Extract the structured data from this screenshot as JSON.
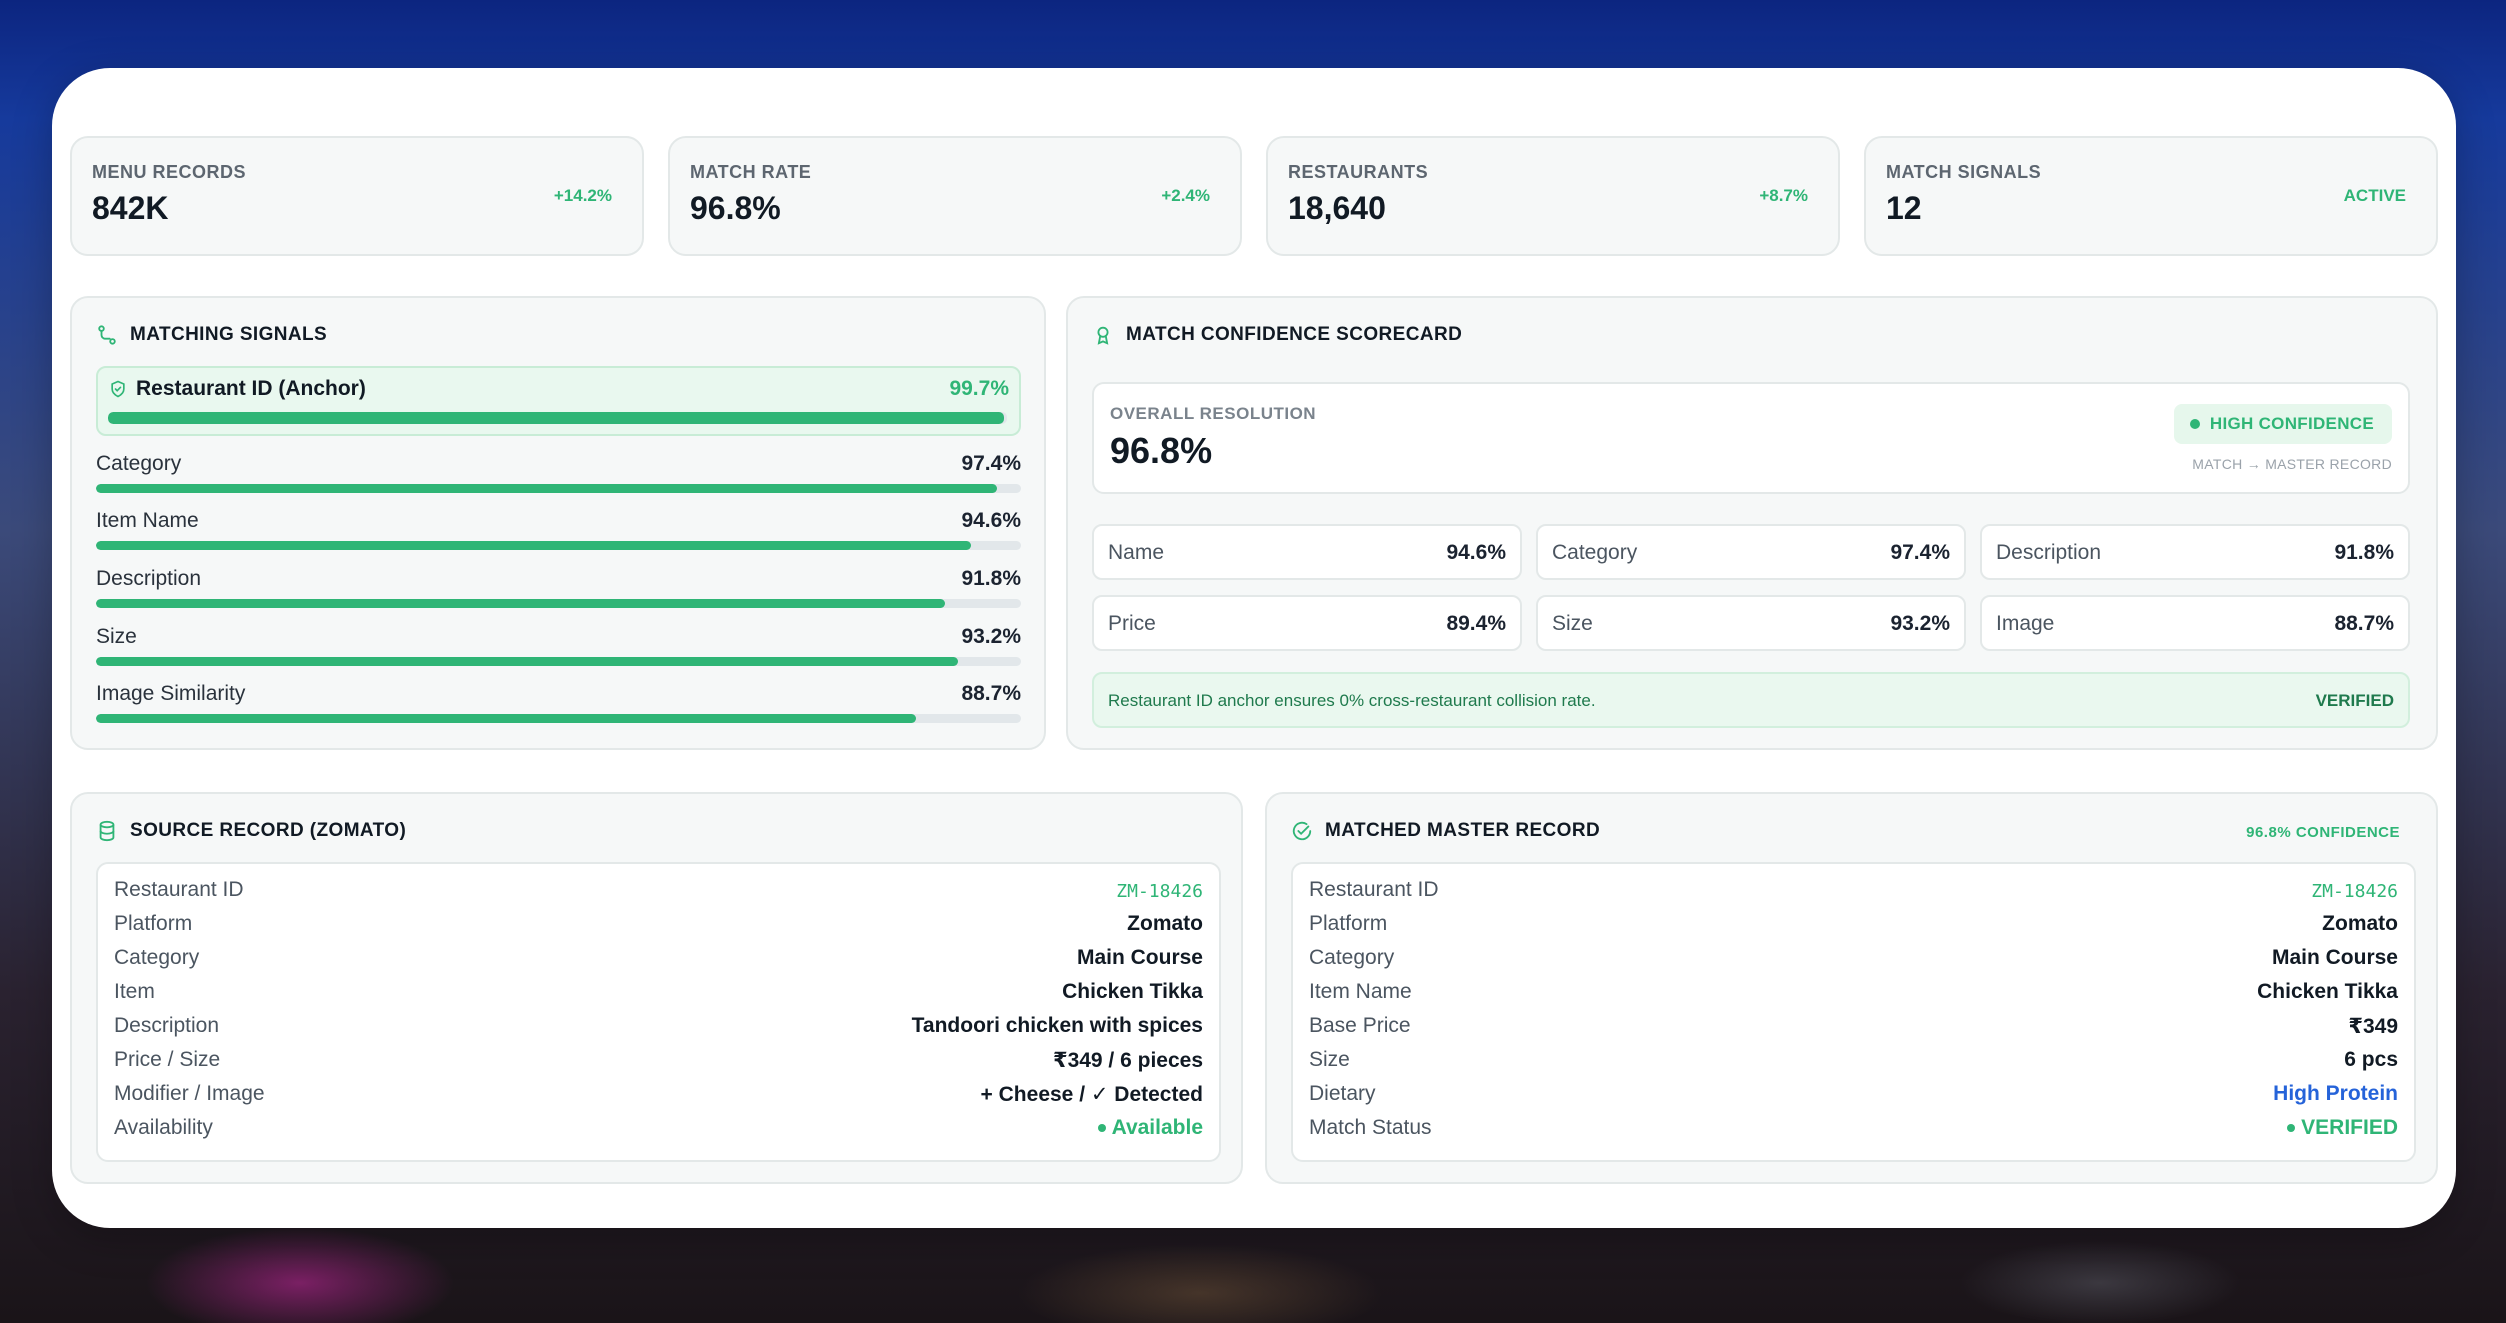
{
  "kpis": [
    {
      "label": "MENU RECORDS",
      "value": "842K",
      "delta": "+14.2%"
    },
    {
      "label": "MATCH RATE",
      "value": "96.8%",
      "delta": "+2.4%"
    },
    {
      "label": "RESTAURANTS",
      "value": "18,640",
      "delta": "+8.7%"
    },
    {
      "label": "MATCH SIGNALS",
      "value": "12",
      "delta": "ACTIVE"
    }
  ],
  "signals": {
    "title": "MATCHING SIGNALS",
    "icon": "route-icon",
    "anchor": {
      "label": "Restaurant ID (Anchor)",
      "pct": "99.7%",
      "level": 0.997
    },
    "items": [
      {
        "label": "Category",
        "pct": "97.4%",
        "level": 0.974
      },
      {
        "label": "Item Name",
        "pct": "94.6%",
        "level": 0.946
      },
      {
        "label": "Description",
        "pct": "91.8%",
        "level": 0.918
      },
      {
        "label": "Size",
        "pct": "93.2%",
        "level": 0.932
      },
      {
        "label": "Image Similarity",
        "pct": "88.7%",
        "level": 0.887
      }
    ]
  },
  "scorecard": {
    "title": "MATCH CONFIDENCE SCORECARD",
    "icon": "award-icon",
    "overall_label": "OVERALL RESOLUTION",
    "overall_value": "96.8%",
    "badge": "HIGH CONFIDENCE",
    "subnote": "MATCH → MASTER RECORD",
    "metrics": [
      {
        "label": "Name",
        "value": "94.6%"
      },
      {
        "label": "Category",
        "value": "97.4%"
      },
      {
        "label": "Description",
        "value": "91.8%"
      },
      {
        "label": "Price",
        "value": "89.4%"
      },
      {
        "label": "Size",
        "value": "93.2%"
      },
      {
        "label": "Image",
        "value": "88.7%"
      }
    ],
    "note": "Restaurant ID anchor ensures 0% cross-restaurant collision rate.",
    "note_status": "VERIFIED"
  },
  "source": {
    "title": "SOURCE RECORD (ZOMATO)",
    "icon": "database-icon",
    "rows": [
      {
        "label": "Restaurant ID",
        "value": "ZM-18426"
      },
      {
        "label": "Platform",
        "value": "Zomato"
      },
      {
        "label": "Category",
        "value": "Main Course"
      },
      {
        "label": "Item",
        "value": "Chicken Tikka"
      },
      {
        "label": "Description",
        "value": "Tandoori chicken with spices"
      },
      {
        "label": "Price / Size",
        "value": "₹349 / 6 pieces"
      },
      {
        "label": "Modifier / Image",
        "value": "+ Cheese / ✓ Detected"
      },
      {
        "label": "Availability",
        "value": "Available"
      }
    ]
  },
  "master": {
    "title": "MATCHED MASTER RECORD",
    "icon": "check-circle-icon",
    "confidence": "96.8% CONFIDENCE",
    "rows": [
      {
        "label": "Restaurant ID",
        "value": "ZM-18426"
      },
      {
        "label": "Platform",
        "value": "Zomato"
      },
      {
        "label": "Category",
        "value": "Main Course"
      },
      {
        "label": "Item Name",
        "value": "Chicken Tikka"
      },
      {
        "label": "Base Price",
        "value": "₹349"
      },
      {
        "label": "Size",
        "value": "6 pcs"
      },
      {
        "label": "Dietary",
        "value": "High Protein"
      },
      {
        "label": "Match Status",
        "value": "VERIFIED"
      }
    ]
  },
  "colors": {
    "accent": "#2fb576",
    "link": "#2563d9",
    "background_top": "#0c2580"
  }
}
